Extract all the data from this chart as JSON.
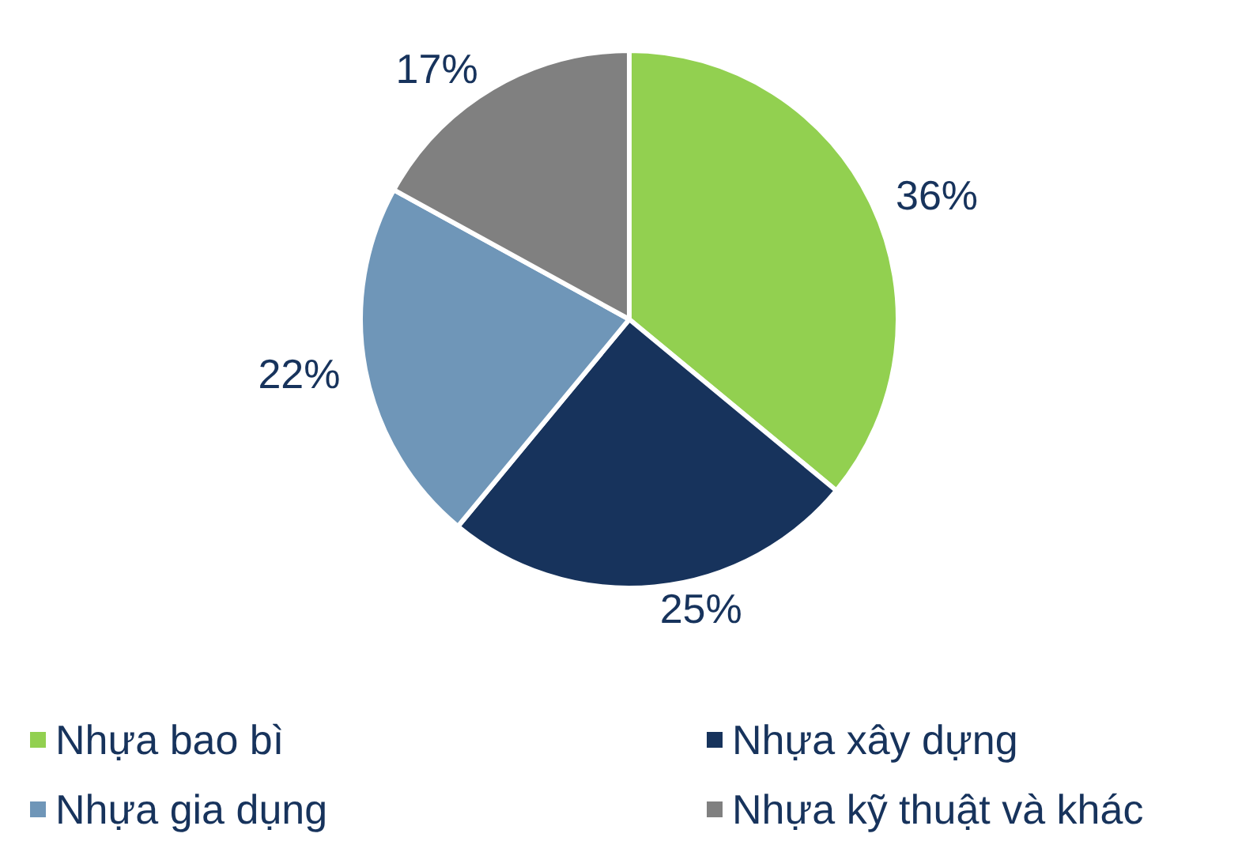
{
  "chart_data": {
    "type": "pie",
    "categories": [
      "Nhựa bao bì",
      "Nhựa xây dựng",
      "Nhựa gia dụng",
      "Nhựa kỹ thuật và khác"
    ],
    "values": [
      36,
      25,
      22,
      17
    ],
    "colors": [
      "#92d050",
      "#17335c",
      "#6f96b8",
      "#808080"
    ],
    "value_labels": [
      "36%",
      "25%",
      "22%",
      "17%"
    ],
    "legend": "bottom"
  }
}
